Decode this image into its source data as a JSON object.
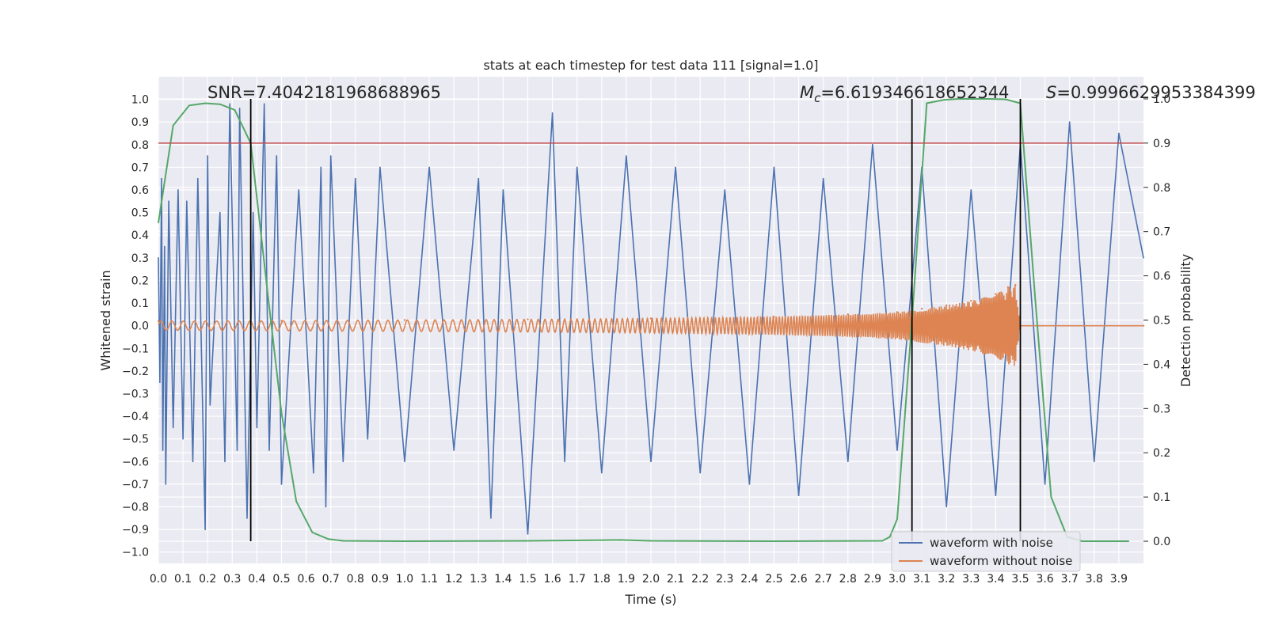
{
  "chart_data": {
    "type": "line",
    "title": "stats at each timestep for test data 111 [signal=1.0]",
    "xlabel": "Time (s)",
    "ylabel": "Whitened strain",
    "y2label": "Detection probability",
    "xlim": [
      0.0,
      4.0
    ],
    "ylim": [
      -1.05,
      1.1
    ],
    "y2lim": [
      -0.05,
      1.05
    ],
    "xticks": [
      "0.0",
      "0.1",
      "0.2",
      "0.3",
      "0.4",
      "0.5",
      "0.6",
      "0.7",
      "0.8",
      "0.9",
      "1.0",
      "1.1",
      "1.2",
      "1.3",
      "1.4",
      "1.5",
      "1.6",
      "1.7",
      "1.8",
      "1.9",
      "2.0",
      "2.1",
      "2.2",
      "2.3",
      "2.4",
      "2.5",
      "2.6",
      "2.7",
      "2.8",
      "2.9",
      "3.0",
      "3.1",
      "3.2",
      "3.3",
      "3.4",
      "3.5",
      "3.6",
      "3.7",
      "3.8",
      "3.9"
    ],
    "yticks": [
      "−1.0",
      "−0.9",
      "−0.8",
      "−0.7",
      "−0.6",
      "−0.5",
      "−0.4",
      "−0.3",
      "−0.2",
      "−0.1",
      "0.0",
      "0.1",
      "0.2",
      "0.3",
      "0.4",
      "0.5",
      "0.6",
      "0.7",
      "0.8",
      "0.9",
      "1.0"
    ],
    "y2ticks": [
      "0.0",
      "0.1",
      "0.2",
      "0.3",
      "0.4",
      "0.5",
      "0.6",
      "0.7",
      "0.8",
      "0.9",
      "1.0"
    ],
    "annotations": {
      "snr": "SNR=7.4042181968688965",
      "mc_symbol": "M",
      "mc_sub": "c",
      "mc_value": "=6.619346618652344",
      "s_symbol": "S",
      "s_value": "=0.9996629953384399"
    },
    "threshold": 0.9,
    "vlines": [
      0.375,
      3.06,
      3.5
    ],
    "legend": {
      "location": "lower right",
      "entries": [
        {
          "label": "waveform with noise",
          "color": "#4c72b0"
        },
        {
          "label": "waveform without noise",
          "color": "#dd8452"
        }
      ]
    },
    "series": [
      {
        "name": "detection probability",
        "axis": "right",
        "color": "#55a868",
        "x": [
          0.0,
          0.06,
          0.125,
          0.19,
          0.25,
          0.31,
          0.375,
          0.44,
          0.5,
          0.56,
          0.625,
          0.69,
          0.75,
          1.0,
          1.5,
          1.875,
          2.0,
          2.5,
          2.94,
          2.97,
          3.0,
          3.06,
          3.12,
          3.19,
          3.25,
          3.31,
          3.375,
          3.44,
          3.5,
          3.56,
          3.625,
          3.69,
          3.75,
          3.875,
          3.94
        ],
        "y": [
          0.72,
          0.94,
          0.985,
          0.99,
          0.988,
          0.975,
          0.9,
          0.58,
          0.29,
          0.09,
          0.02,
          0.005,
          0.001,
          0.0,
          0.001,
          0.003,
          0.001,
          0.0,
          0.001,
          0.01,
          0.05,
          0.5,
          0.99,
          0.998,
          1.0,
          1.0,
          1.0,
          0.999,
          0.99,
          0.55,
          0.1,
          0.01,
          0.0,
          0.0,
          0.0
        ]
      },
      {
        "name": "waveform with noise",
        "axis": "left",
        "color": "#4c72b0",
        "x": [
          0.0,
          0.006,
          0.013,
          0.018,
          0.025,
          0.03,
          0.042,
          0.06,
          0.08,
          0.1,
          0.115,
          0.14,
          0.16,
          0.19,
          0.2,
          0.21,
          0.25,
          0.27,
          0.29,
          0.32,
          0.33,
          0.36,
          0.385,
          0.4,
          0.43,
          0.45,
          0.48,
          0.5,
          0.57,
          0.63,
          0.66,
          0.68,
          0.7,
          0.75,
          0.8,
          0.85,
          0.9,
          1.0,
          1.1,
          1.2,
          1.3,
          1.35,
          1.4,
          1.5,
          1.6,
          1.65,
          1.7,
          1.8,
          1.9,
          2.0,
          2.1,
          2.2,
          2.3,
          2.4,
          2.5,
          2.6,
          2.7,
          2.8,
          2.9,
          3.0,
          3.1,
          3.2,
          3.3,
          3.4,
          3.5,
          3.6,
          3.7,
          3.8,
          3.9,
          4.0
        ],
        "y": [
          0.3,
          -0.25,
          0.65,
          -0.55,
          0.35,
          -0.7,
          0.55,
          -0.45,
          0.6,
          -0.5,
          0.55,
          -0.6,
          0.65,
          -0.9,
          0.75,
          -0.35,
          0.5,
          -0.6,
          0.98,
          -0.55,
          0.96,
          -0.85,
          0.5,
          -0.45,
          0.98,
          -0.55,
          0.75,
          -0.7,
          0.6,
          -0.65,
          0.7,
          -0.8,
          0.75,
          -0.6,
          0.65,
          -0.5,
          0.7,
          -0.6,
          0.7,
          -0.55,
          0.65,
          -0.85,
          0.6,
          -0.92,
          0.94,
          -0.6,
          0.7,
          -0.65,
          0.75,
          -0.6,
          0.7,
          -0.65,
          0.6,
          -0.7,
          0.7,
          -0.75,
          0.65,
          -0.6,
          0.8,
          -0.55,
          0.7,
          -0.8,
          0.6,
          -0.75,
          0.8,
          -0.7,
          0.9,
          -0.6,
          0.85,
          0.3
        ]
      },
      {
        "name": "waveform without noise",
        "axis": "left",
        "color": "#dd8452",
        "x": [
          0.0,
          0.5,
          1.0,
          1.5,
          2.0,
          2.5,
          2.8,
          3.0,
          3.1,
          3.2,
          3.3,
          3.4,
          3.45,
          3.48,
          3.5,
          4.0
        ],
        "y": [
          0.02,
          0.022,
          0.025,
          0.028,
          0.032,
          0.04,
          0.05,
          0.06,
          0.075,
          0.09,
          0.11,
          0.14,
          0.17,
          0.18,
          0.0,
          0.0
        ]
      }
    ]
  }
}
